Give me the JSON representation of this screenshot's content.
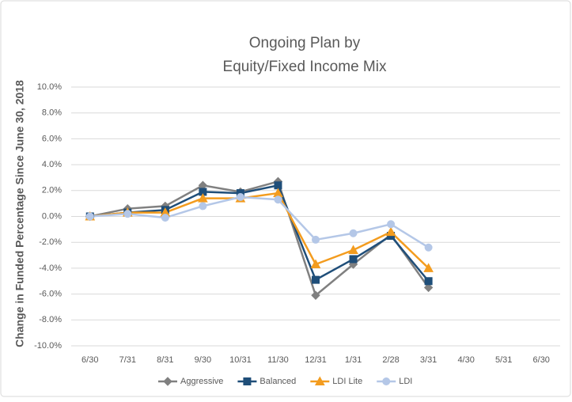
{
  "chart_data": {
    "type": "line",
    "title": [
      "Ongoing Plan by",
      "Equity/Fixed Income Mix"
    ],
    "y_label": "Change in Funded Percentage Since June 30, 2018",
    "categories": [
      "6/30",
      "7/31",
      "8/31",
      "9/30",
      "10/31",
      "11/30",
      "12/31",
      "1/31",
      "2/28",
      "3/31",
      "4/30",
      "5/31",
      "6/30"
    ],
    "series": [
      {
        "name": "Aggressive",
        "color": "#808080",
        "marker": "diamond",
        "values": [
          0,
          0.6,
          0.8,
          2.4,
          1.9,
          2.7,
          -6.1,
          -3.7,
          -1.4,
          -5.5,
          null,
          null,
          null
        ]
      },
      {
        "name": "Balanced",
        "color": "#1f4e79",
        "marker": "square",
        "values": [
          0,
          0.3,
          0.5,
          1.9,
          1.8,
          2.4,
          -4.9,
          -3.3,
          -1.5,
          -5.0,
          null,
          null,
          null
        ]
      },
      {
        "name": "LDI Lite",
        "color": "#f39c1f",
        "marker": "triangle",
        "values": [
          0,
          0.3,
          0.3,
          1.4,
          1.4,
          1.8,
          -3.7,
          -2.6,
          -1.2,
          -4.0,
          null,
          null,
          null
        ]
      },
      {
        "name": "LDI",
        "color": "#b4c7e7",
        "marker": "circle",
        "values": [
          0,
          0.2,
          -0.1,
          0.8,
          1.5,
          1.3,
          -1.8,
          -1.3,
          -0.6,
          -2.4,
          null,
          null,
          null
        ]
      }
    ],
    "ylim": [
      -10,
      10
    ],
    "yticks": [
      {
        "value": -10,
        "label": "-10.0%"
      },
      {
        "value": -8,
        "label": "-8.0%"
      },
      {
        "value": -6,
        "label": "-6.0%"
      },
      {
        "value": -4,
        "label": "-4.0%"
      },
      {
        "value": -2,
        "label": "-2.0%"
      },
      {
        "value": 0,
        "label": "0.0%"
      },
      {
        "value": 2,
        "label": "2.0%"
      },
      {
        "value": 4,
        "label": "4.0%"
      },
      {
        "value": 6,
        "label": "6.0%"
      },
      {
        "value": 8,
        "label": "8.0%"
      },
      {
        "value": 10,
        "label": "10.0%"
      }
    ],
    "grid": true,
    "legend": "bottom"
  }
}
